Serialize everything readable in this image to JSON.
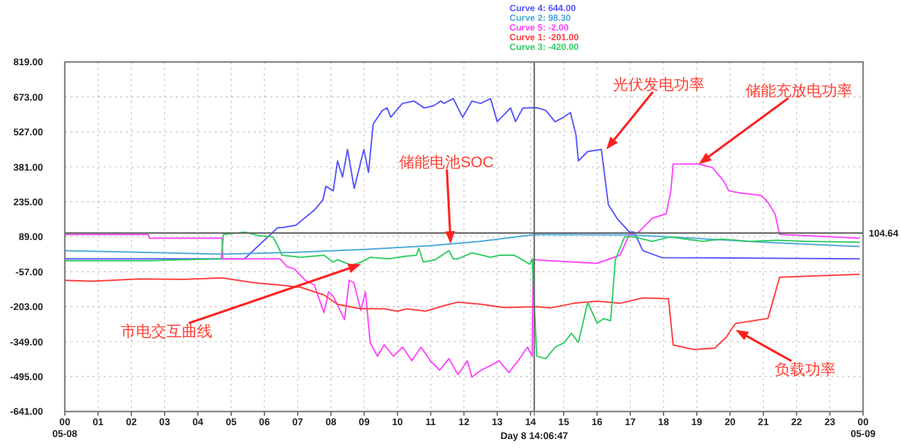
{
  "chart_data": {
    "type": "line",
    "legend": "top",
    "grid": true,
    "line_style": "solid",
    "marker": "none",
    "xlim": [
      0,
      24
    ],
    "ylim": [
      -641,
      819
    ],
    "xticks": [
      {
        "value": 0,
        "label": "00\n05-08"
      },
      {
        "value": 1,
        "label": "01"
      },
      {
        "value": 2,
        "label": "02"
      },
      {
        "value": 3,
        "label": "03"
      },
      {
        "value": 4,
        "label": "04"
      },
      {
        "value": 5,
        "label": "05"
      },
      {
        "value": 6,
        "label": "06"
      },
      {
        "value": 7,
        "label": "07"
      },
      {
        "value": 8,
        "label": "08"
      },
      {
        "value": 9,
        "label": "09"
      },
      {
        "value": 10,
        "label": "10"
      },
      {
        "value": 11,
        "label": "11"
      },
      {
        "value": 12,
        "label": "12"
      },
      {
        "value": 13,
        "label": "13"
      },
      {
        "value": 14,
        "label": "14"
      },
      {
        "value": 15,
        "label": "15"
      },
      {
        "value": 16,
        "label": "16"
      },
      {
        "value": 17,
        "label": "17"
      },
      {
        "value": 18,
        "label": "18"
      },
      {
        "value": 19,
        "label": "19"
      },
      {
        "value": 20,
        "label": "20"
      },
      {
        "value": 21,
        "label": "21"
      },
      {
        "value": 22,
        "label": "22"
      },
      {
        "value": 23,
        "label": "23"
      },
      {
        "value": 24,
        "label": "00\n05-09"
      }
    ],
    "yticks": [
      {
        "value": 819,
        "label": "819.00"
      },
      {
        "value": 673,
        "label": "673.00"
      },
      {
        "value": 527,
        "label": "527.00"
      },
      {
        "value": 381,
        "label": "381.00"
      },
      {
        "value": 235,
        "label": "235.00"
      },
      {
        "value": 89,
        "label": "89.00"
      },
      {
        "value": -57,
        "label": "-57.00"
      },
      {
        "value": -203,
        "label": "-203.00"
      },
      {
        "value": -349,
        "label": "-349.00"
      },
      {
        "value": -495,
        "label": "-495.00"
      },
      {
        "value": -641,
        "label": "-641.00"
      }
    ],
    "ref_lines": [
      {
        "axis": "y",
        "value": 104.64,
        "label": "104.64",
        "color": "#606060"
      },
      {
        "axis": "x",
        "value": 14.113,
        "label": "Day 8 14:06:47",
        "color": "#606060"
      }
    ],
    "annotations": [
      {
        "text": "储能电池SOC",
        "x": 11.6,
        "y": 60
      },
      {
        "text": "光伏发电功率",
        "x": 16.28,
        "y": 454
      },
      {
        "text": "储能充放电功率",
        "x": 19.06,
        "y": 393
      },
      {
        "text": "市电交互曲线",
        "x": 8.9,
        "y": -26
      },
      {
        "text": "负载功率",
        "x": 20.17,
        "y": -300
      }
    ],
    "series": [
      {
        "name": "Curve 4: 644.00",
        "color": "#5555ff",
        "x": [
          0,
          5.4,
          6.4,
          6.53,
          6.95,
          7.2,
          7.5,
          7.76,
          7.85,
          8.07,
          8.2,
          8.35,
          8.5,
          8.7,
          8.99,
          9.13,
          9.27,
          9.55,
          9.69,
          9.8,
          10.15,
          10.5,
          10.8,
          11.1,
          11.3,
          11.4,
          11.68,
          11.96,
          12.24,
          12.5,
          12.8,
          13.0,
          13.4,
          13.55,
          13.77,
          14.18,
          14.46,
          14.74,
          15.0,
          15.2,
          15.37,
          15.44,
          15.72,
          16.13,
          16.34,
          16.6,
          16.97,
          17.11,
          17.38,
          17.94,
          23.9
        ],
        "values": [
          -3,
          -3,
          127,
          127,
          137,
          166,
          200,
          243,
          300,
          281,
          406,
          339,
          454,
          291,
          454,
          358,
          560,
          617,
          627,
          589,
          646,
          656,
          627,
          637,
          656,
          646,
          666,
          588,
          656,
          646,
          666,
          570,
          627,
          570,
          627,
          628,
          617,
          569,
          589,
          608,
          512,
          406,
          445,
          454,
          224,
          166,
          109,
          109,
          31,
          2,
          -3
        ]
      },
      {
        "name": "Curve 2: 98.30",
        "color": "#4aa8d8",
        "x": [
          0,
          2,
          4.7,
          7,
          9,
          11,
          12.5,
          14.11,
          17,
          19,
          21,
          23.9
        ],
        "values": [
          31,
          25,
          16,
          24,
          36,
          52,
          70,
          98,
          97,
          82,
          66,
          48
        ]
      },
      {
        "name": "Curve 5: -2.00",
        "color": "#ff44ff",
        "x": [
          0,
          2.5,
          2.55,
          4.73,
          4.75,
          6.47,
          6.68,
          6.9,
          7.23,
          7.5,
          7.79,
          7.93,
          8.07,
          8.41,
          8.55,
          8.69,
          8.9,
          9.04,
          9.18,
          9.4,
          9.6,
          9.88,
          10.16,
          10.43,
          10.71,
          10.99,
          11.27,
          11.55,
          11.82,
          12.1,
          12.24,
          12.52,
          12.8,
          13.05,
          13.35,
          13.63,
          13.91,
          14.05,
          14.08,
          16.0,
          16.69,
          16.97,
          17.25,
          17.66,
          18.08,
          18.22,
          18.29,
          19.05,
          19.47,
          19.82,
          19.96,
          20.3,
          20.93,
          21.14,
          21.35,
          21.49,
          23.9
        ],
        "values": [
          98,
          98,
          83,
          83,
          -3,
          -3,
          -36,
          -45,
          -93,
          -112,
          -228,
          -141,
          -160,
          -257,
          -93,
          -103,
          -218,
          -141,
          -353,
          -410,
          -362,
          -410,
          -372,
          -429,
          -372,
          -429,
          -468,
          -420,
          -487,
          -429,
          -497,
          -468,
          -449,
          -429,
          -478,
          -429,
          -372,
          -410,
          -7,
          -22,
          12,
          98,
          108,
          166,
          185,
          281,
          393,
          393,
          378,
          320,
          281,
          272,
          262,
          233,
          185,
          99,
          83
        ]
      },
      {
        "name": "Curve 1: -201.00",
        "color": "#ff3c3c",
        "x": [
          0,
          0.83,
          2.23,
          3.62,
          4.73,
          5.7,
          6.4,
          7.09,
          7.79,
          8.2,
          8.9,
          9.6,
          10.0,
          10.29,
          10.85,
          11.4,
          11.82,
          12.52,
          13.21,
          14.19,
          14.6,
          15.3,
          16.0,
          16.69,
          17.38,
          18.15,
          18.29,
          18.92,
          19.54,
          19.89,
          20.1,
          20.17,
          20.6,
          21.14,
          21.49,
          22.5,
          23.9
        ],
        "values": [
          -93,
          -97,
          -87,
          -89,
          -83,
          -103,
          -112,
          -122,
          -154,
          -193,
          -212,
          -212,
          -222,
          -212,
          -222,
          -199,
          -184,
          -193,
          -207,
          -203,
          -208,
          -189,
          -180,
          -189,
          -166,
          -170,
          -363,
          -382,
          -376,
          -330,
          -285,
          -273,
          -264,
          -252,
          -80,
          -75,
          -68
        ]
      },
      {
        "name": "Curve 3: -420.00",
        "color": "#33cc66",
        "x": [
          0,
          2.5,
          4.7,
          4.77,
          5.42,
          5.84,
          6.26,
          6.4,
          6.53,
          7.09,
          7.79,
          8.07,
          8.2,
          8.62,
          8.9,
          9.18,
          9.74,
          10.16,
          10.57,
          10.64,
          10.78,
          11.13,
          11.55,
          11.68,
          11.82,
          12.24,
          12.8,
          13.07,
          13.5,
          13.63,
          13.98,
          14.05,
          14.19,
          14.46,
          14.74,
          15.02,
          15.23,
          15.44,
          15.72,
          16.0,
          16.2,
          16.41,
          16.55,
          16.83,
          17.11,
          17.66,
          18.22,
          18.64,
          19.19,
          19.75,
          20.59,
          21.42,
          22.26,
          23.9
        ],
        "values": [
          -11,
          -11,
          -3,
          99,
          108,
          93,
          89,
          51,
          12,
          3,
          12,
          -17,
          -7,
          -30,
          -17,
          3,
          -3,
          6,
          12,
          41,
          -17,
          -7,
          31,
          -3,
          -3,
          22,
          3,
          12,
          12,
          3,
          -26,
          -3,
          -410,
          -420,
          -372,
          -353,
          -314,
          -353,
          -185,
          -272,
          -253,
          -262,
          -8,
          89,
          89,
          70,
          89,
          79,
          70,
          79,
          70,
          74,
          70,
          66
        ]
      }
    ]
  }
}
